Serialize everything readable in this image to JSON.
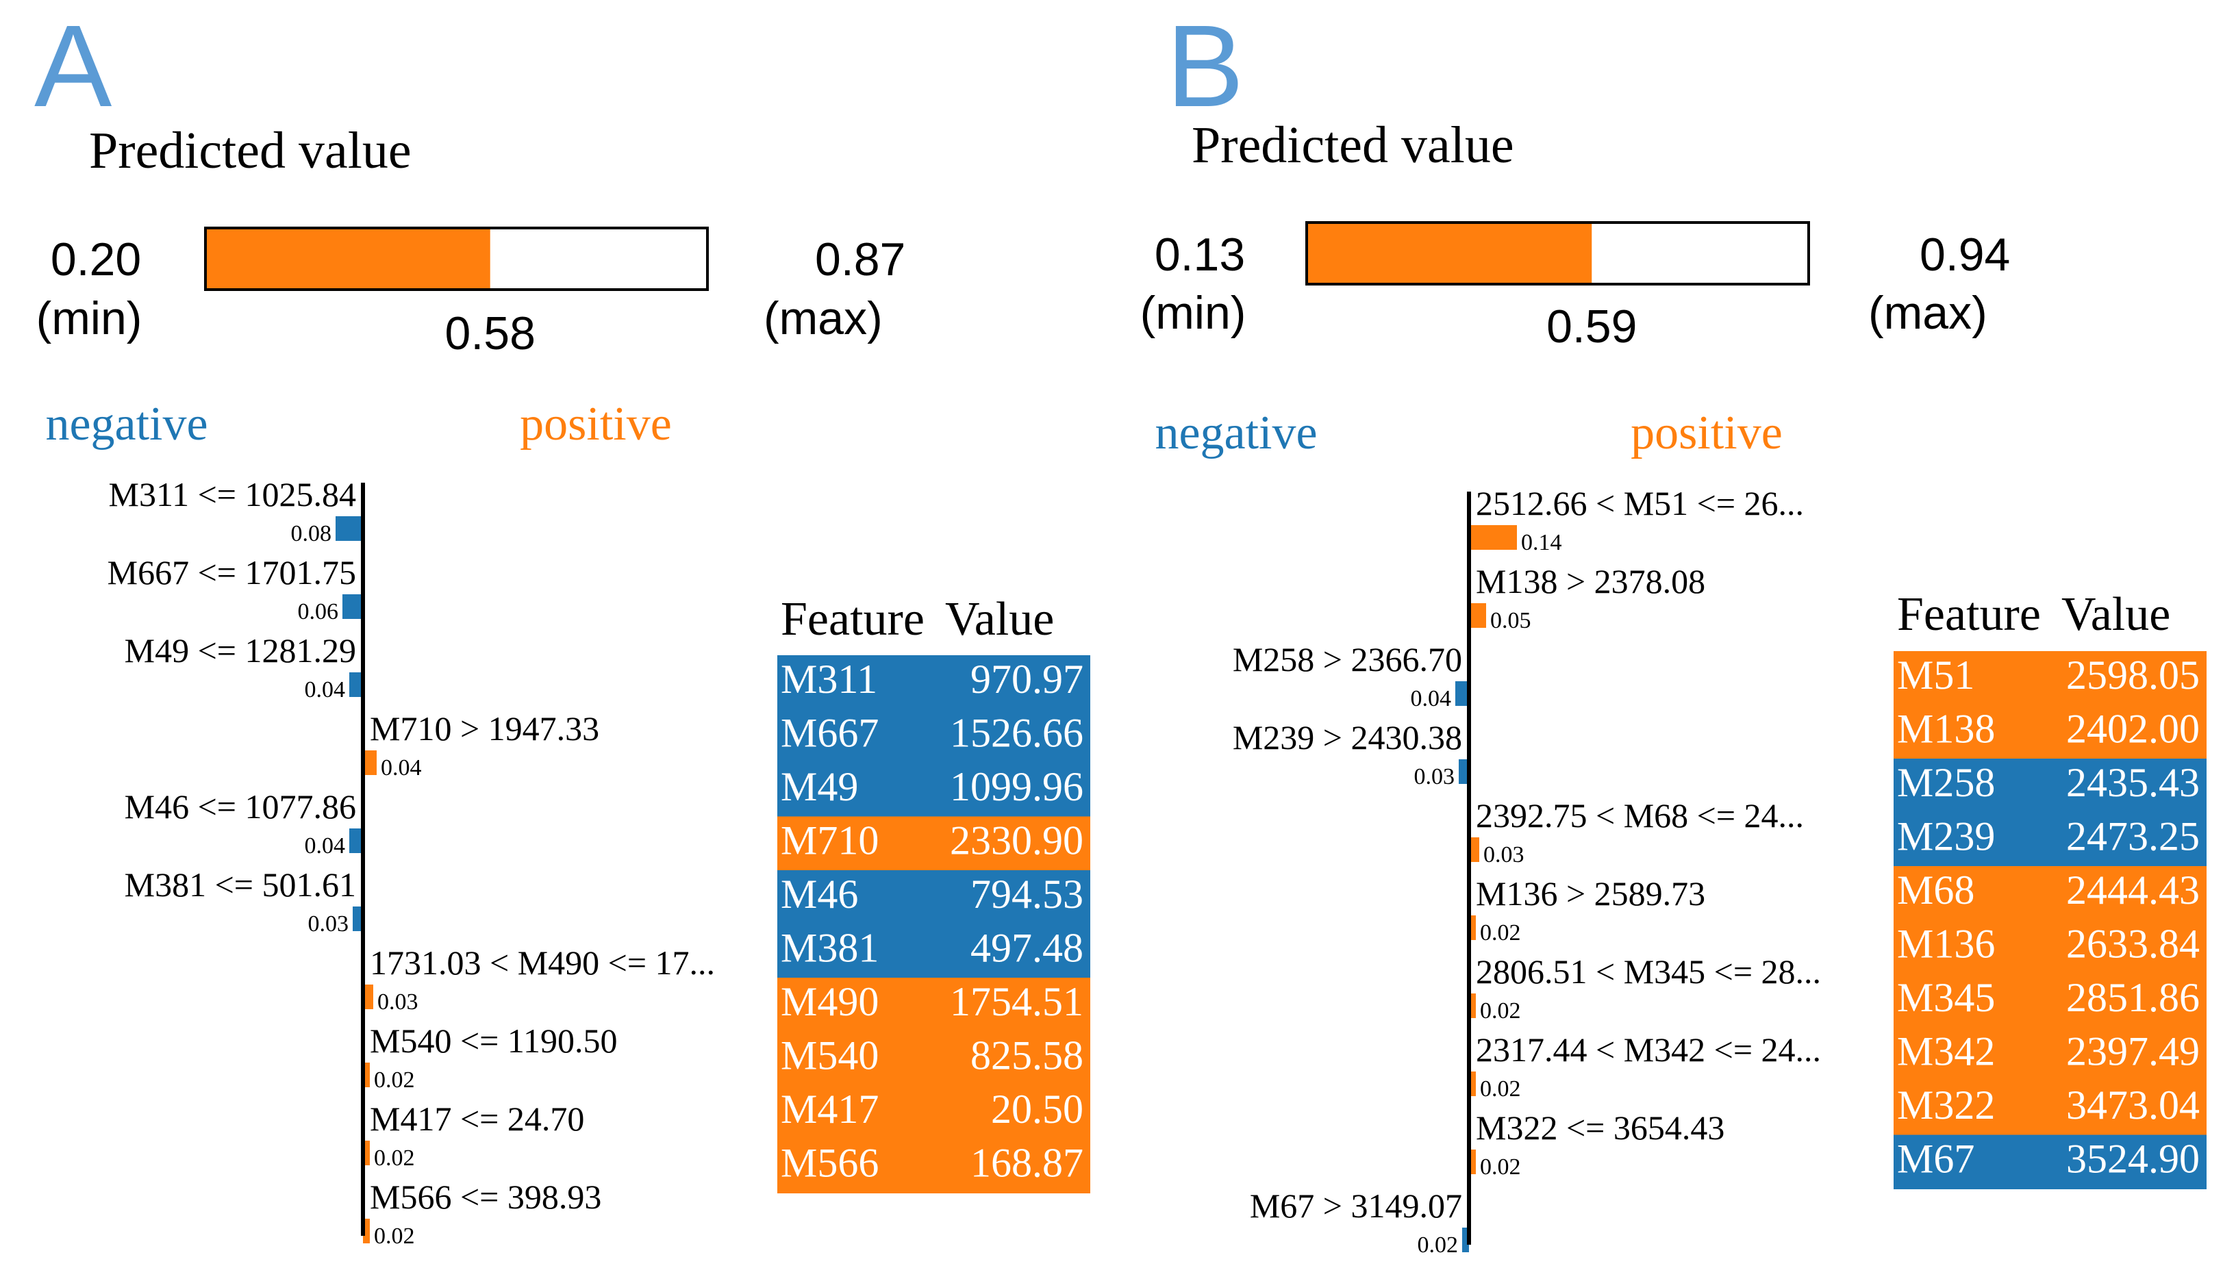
{
  "colors": {
    "negative": "#1f77b4",
    "positive": "#ff7f0e",
    "letter": "#5b9bd5",
    "axis": "#000000"
  },
  "chart_data": [
    {
      "type": "bar",
      "panel_letter": "A",
      "prediction": {
        "title": "Predicted value",
        "min": 0.2,
        "min_text": "0.20",
        "min_label": "(min)",
        "max": 0.87,
        "max_text": "0.87",
        "max_label": "(max)",
        "value": 0.58,
        "value_text": "0.58"
      },
      "negative_label": "negative",
      "positive_label": "positive",
      "contributions": [
        {
          "label": "M311 <= 1025.84",
          "value": 0.08,
          "value_text": "0.08",
          "sign": "negative"
        },
        {
          "label": "M667 <= 1701.75",
          "value": 0.06,
          "value_text": "0.06",
          "sign": "negative"
        },
        {
          "label": "M49 <= 1281.29",
          "value": 0.04,
          "value_text": "0.04",
          "sign": "negative"
        },
        {
          "label": "M710 > 1947.33",
          "value": 0.04,
          "value_text": "0.04",
          "sign": "positive"
        },
        {
          "label": "M46 <= 1077.86",
          "value": 0.04,
          "value_text": "0.04",
          "sign": "negative"
        },
        {
          "label": "M381 <= 501.61",
          "value": 0.03,
          "value_text": "0.03",
          "sign": "negative"
        },
        {
          "label": "1731.03 < M490 <= 17...",
          "value": 0.03,
          "value_text": "0.03",
          "sign": "positive"
        },
        {
          "label": "M540 <= 1190.50",
          "value": 0.02,
          "value_text": "0.02",
          "sign": "positive"
        },
        {
          "label": "M417 <= 24.70",
          "value": 0.02,
          "value_text": "0.02",
          "sign": "positive"
        },
        {
          "label": "M566 <= 398.93",
          "value": 0.02,
          "value_text": "0.02",
          "sign": "positive"
        }
      ],
      "table": {
        "headers": [
          "Feature",
          "Value"
        ],
        "rows": [
          {
            "feature": "M311",
            "value": "970.97",
            "sign": "negative"
          },
          {
            "feature": "M667",
            "value": "1526.66",
            "sign": "negative"
          },
          {
            "feature": "M49",
            "value": "1099.96",
            "sign": "negative"
          },
          {
            "feature": "M710",
            "value": "2330.90",
            "sign": "positive"
          },
          {
            "feature": "M46",
            "value": "794.53",
            "sign": "negative"
          },
          {
            "feature": "M381",
            "value": "497.48",
            "sign": "negative"
          },
          {
            "feature": "M490",
            "value": "1754.51",
            "sign": "positive"
          },
          {
            "feature": "M540",
            "value": "825.58",
            "sign": "positive"
          },
          {
            "feature": "M417",
            "value": "20.50",
            "sign": "positive"
          },
          {
            "feature": "M566",
            "value": "168.87",
            "sign": "positive"
          }
        ]
      }
    },
    {
      "type": "bar",
      "panel_letter": "B",
      "prediction": {
        "title": "Predicted value",
        "min": 0.13,
        "min_text": "0.13",
        "min_label": "(min)",
        "max": 0.94,
        "max_text": "0.94",
        "max_label": "(max)",
        "value": 0.59,
        "value_text": "0.59"
      },
      "negative_label": "negative",
      "positive_label": "positive",
      "contributions": [
        {
          "label": "2512.66 < M51 <= 26...",
          "value": 0.14,
          "value_text": "0.14",
          "sign": "positive"
        },
        {
          "label": "M138 > 2378.08",
          "value": 0.05,
          "value_text": "0.05",
          "sign": "positive"
        },
        {
          "label": "M258 > 2366.70",
          "value": 0.04,
          "value_text": "0.04",
          "sign": "negative"
        },
        {
          "label": "M239 > 2430.38",
          "value": 0.03,
          "value_text": "0.03",
          "sign": "negative"
        },
        {
          "label": "2392.75 < M68 <= 24...",
          "value": 0.03,
          "value_text": "0.03",
          "sign": "positive"
        },
        {
          "label": "M136 > 2589.73",
          "value": 0.02,
          "value_text": "0.02",
          "sign": "positive"
        },
        {
          "label": "2806.51 < M345 <= 28...",
          "value": 0.02,
          "value_text": "0.02",
          "sign": "positive"
        },
        {
          "label": "2317.44 < M342 <= 24...",
          "value": 0.02,
          "value_text": "0.02",
          "sign": "positive"
        },
        {
          "label": "M322 <= 3654.43",
          "value": 0.02,
          "value_text": "0.02",
          "sign": "positive"
        },
        {
          "label": "M67 > 3149.07",
          "value": 0.02,
          "value_text": "0.02",
          "sign": "negative"
        }
      ],
      "table": {
        "headers": [
          "Feature",
          "Value"
        ],
        "rows": [
          {
            "feature": "M51",
            "value": "2598.05",
            "sign": "positive"
          },
          {
            "feature": "M138",
            "value": "2402.00",
            "sign": "positive"
          },
          {
            "feature": "M258",
            "value": "2435.43",
            "sign": "negative"
          },
          {
            "feature": "M239",
            "value": "2473.25",
            "sign": "negative"
          },
          {
            "feature": "M68",
            "value": "2444.43",
            "sign": "positive"
          },
          {
            "feature": "M136",
            "value": "2633.84",
            "sign": "positive"
          },
          {
            "feature": "M345",
            "value": "2851.86",
            "sign": "positive"
          },
          {
            "feature": "M342",
            "value": "2397.49",
            "sign": "positive"
          },
          {
            "feature": "M322",
            "value": "3473.04",
            "sign": "positive"
          },
          {
            "feature": "M67",
            "value": "3524.90",
            "sign": "negative"
          }
        ]
      }
    }
  ]
}
